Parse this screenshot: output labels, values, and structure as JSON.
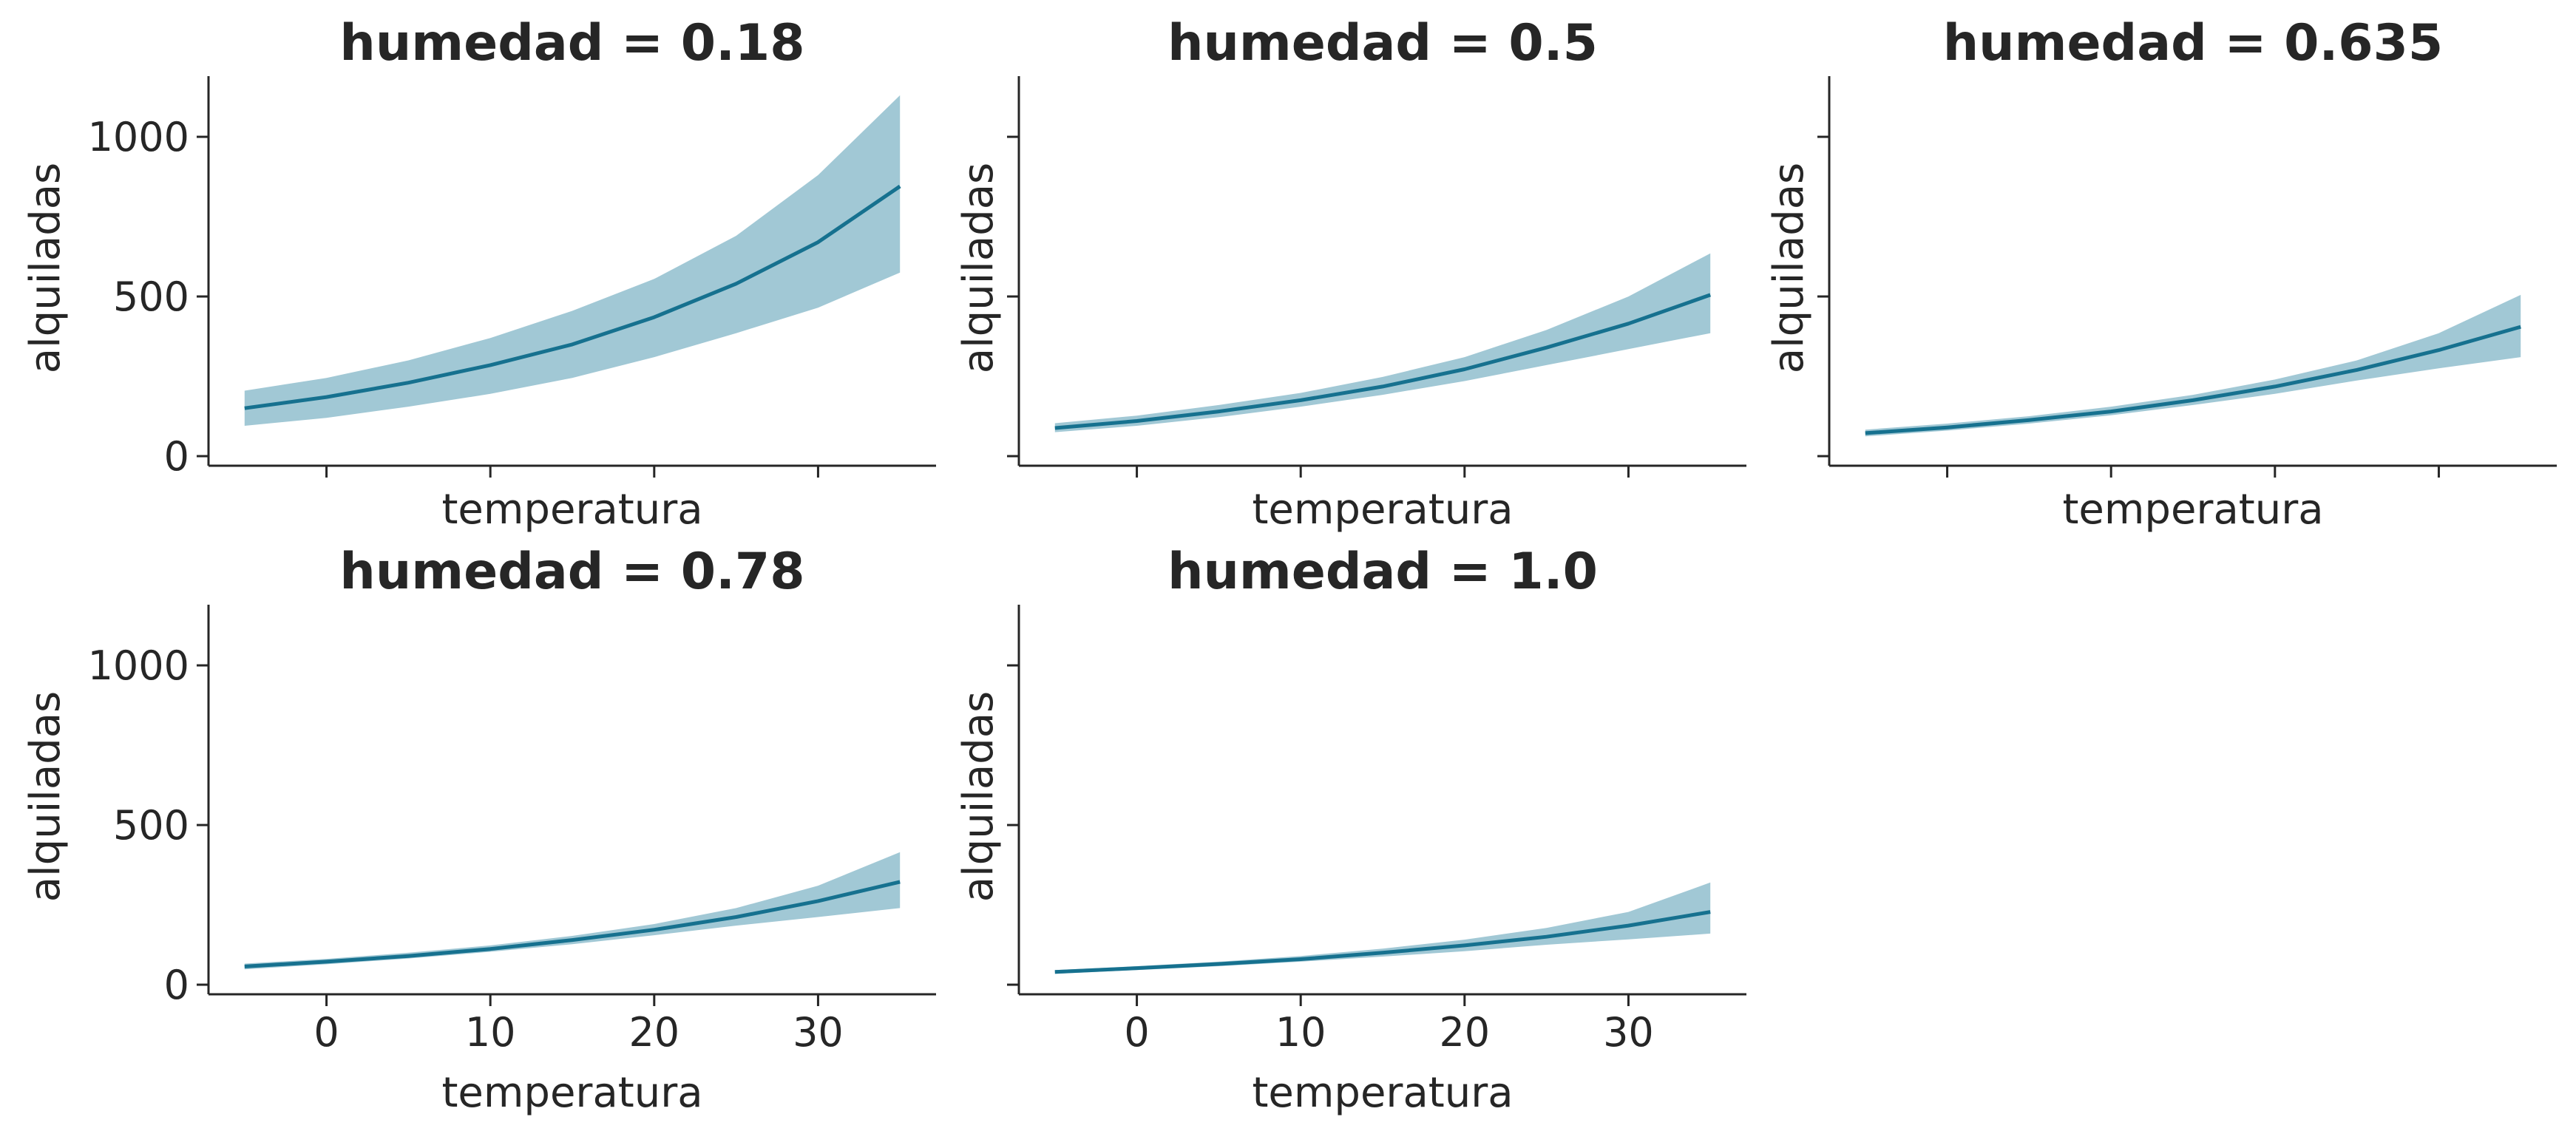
{
  "colors": {
    "band": "#a1c8d5",
    "line": "#16718f",
    "axis": "#262626"
  },
  "chart_data": {
    "type": "line",
    "layout": "facet-grid",
    "xlabel": "temperatura",
    "ylabel": "alquiladas",
    "xlim": [
      -7.2,
      37.2
    ],
    "ylim": [
      -30,
      1190
    ],
    "xticks": [
      0,
      10,
      20,
      30
    ],
    "yticks": [
      0,
      500,
      1000
    ],
    "panels": [
      {
        "title": "humedad = 0.18",
        "x": [
          -5,
          0,
          5,
          10,
          15,
          20,
          25,
          30,
          35
        ],
        "mean": [
          150,
          185,
          230,
          285,
          350,
          435,
          540,
          670,
          845
        ],
        "lower": [
          95,
          120,
          155,
          195,
          245,
          310,
          385,
          465,
          575
        ],
        "upper": [
          205,
          245,
          300,
          370,
          455,
          555,
          690,
          880,
          1130
        ]
      },
      {
        "title": "humedad = 0.5",
        "x": [
          -5,
          0,
          5,
          10,
          15,
          20,
          25,
          30,
          35
        ],
        "mean": [
          88,
          110,
          140,
          175,
          218,
          272,
          340,
          415,
          505
        ],
        "lower": [
          75,
          95,
          122,
          155,
          192,
          235,
          285,
          335,
          385
        ],
        "upper": [
          103,
          127,
          160,
          198,
          248,
          310,
          395,
          500,
          635
        ]
      },
      {
        "title": "humedad = 0.635",
        "x": [
          -5,
          0,
          5,
          10,
          15,
          20,
          25,
          30,
          35
        ],
        "mean": [
          72,
          90,
          113,
          140,
          175,
          218,
          270,
          332,
          405
        ],
        "lower": [
          62,
          80,
          102,
          128,
          160,
          195,
          237,
          275,
          310
        ],
        "upper": [
          83,
          102,
          125,
          155,
          192,
          240,
          300,
          385,
          505
        ]
      },
      {
        "title": "humedad = 0.78",
        "x": [
          -5,
          0,
          5,
          10,
          15,
          20,
          25,
          30,
          35
        ],
        "mean": [
          57,
          72,
          90,
          112,
          140,
          172,
          212,
          262,
          322
        ],
        "lower": [
          48,
          64,
          82,
          103,
          127,
          155,
          185,
          212,
          240
        ],
        "upper": [
          66,
          81,
          100,
          123,
          153,
          190,
          240,
          310,
          415
        ]
      },
      {
        "title": "humedad = 1.0",
        "x": [
          -5,
          0,
          5,
          10,
          15,
          20,
          25,
          30,
          35
        ],
        "mean": [
          40,
          52,
          65,
          80,
          100,
          123,
          150,
          185,
          228
        ],
        "lower": [
          34,
          46,
          58,
          72,
          88,
          105,
          125,
          142,
          160
        ],
        "upper": [
          46,
          58,
          72,
          90,
          113,
          141,
          178,
          228,
          320
        ]
      }
    ],
    "grid": false,
    "sharey": true,
    "sharex": true
  }
}
